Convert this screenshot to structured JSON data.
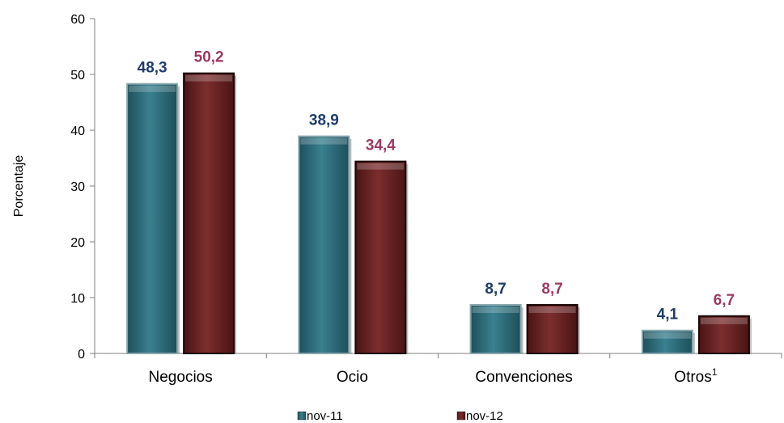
{
  "chart_data": {
    "type": "bar",
    "categories": [
      "Negocios",
      "Ocio",
      "Convenciones",
      "Otros"
    ],
    "category_superscripts": [
      "",
      "",
      "",
      "1"
    ],
    "series": [
      {
        "name": "nov-11",
        "values": [
          48.3,
          38.9,
          8.7,
          4.1
        ],
        "labels": [
          "48,3",
          "38,9",
          "8,7",
          "4,1"
        ],
        "color": "#2e6b78",
        "label_color": "#1f3d6b"
      },
      {
        "name": "nov-12",
        "values": [
          50.2,
          34.4,
          8.7,
          6.7
        ],
        "labels": [
          "50,2",
          "34,4",
          "8,7",
          "6,7"
        ],
        "color": "#6b2424",
        "label_color": "#9b3a63"
      }
    ],
    "ylabel": "Porcentaje",
    "xlabel": "",
    "ylim": [
      0,
      60
    ],
    "yticks": [
      0,
      10,
      20,
      30,
      40,
      50,
      60
    ],
    "grid": false,
    "legend_position": "bottom"
  }
}
